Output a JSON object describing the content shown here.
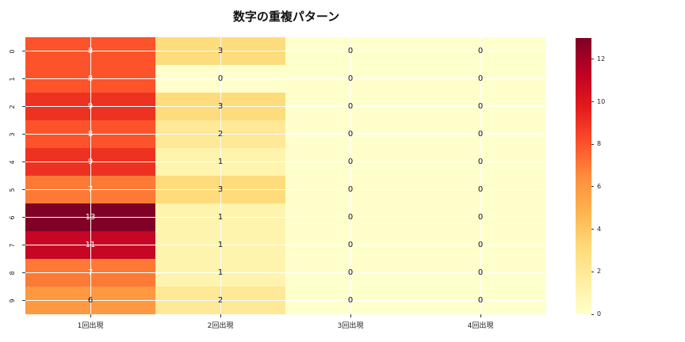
{
  "chart_data": {
    "type": "heatmap",
    "title": "数字の重複パターン",
    "columns": [
      "1回出現",
      "2回出現",
      "3回出現",
      "4回出現"
    ],
    "rows": [
      "0",
      "1",
      "2",
      "3",
      "4",
      "5",
      "6",
      "7",
      "8",
      "9"
    ],
    "values": [
      [
        8,
        3,
        0,
        0
      ],
      [
        8,
        0,
        0,
        0
      ],
      [
        9,
        3,
        0,
        0
      ],
      [
        8,
        2,
        0,
        0
      ],
      [
        9,
        1,
        0,
        0
      ],
      [
        7,
        3,
        0,
        0
      ],
      [
        13,
        1,
        0,
        0
      ],
      [
        11,
        1,
        0,
        0
      ],
      [
        7,
        1,
        0,
        0
      ],
      [
        6,
        2,
        0,
        0
      ]
    ],
    "vmin": 0,
    "vmax": 13,
    "annot_white_min": 7,
    "annot_color_dark": "#111111",
    "annot_color_light": "#ffffff",
    "value_colors": {
      "0": "#ffffcc",
      "1": "#fff4ad",
      "2": "#ffe896",
      "3": "#fedc7c",
      "6": "#fe9841",
      "7": "#fd7a36",
      "8": "#fc532b",
      "9": "#ee3222",
      "11": "#c60624",
      "13": "#800026"
    },
    "grid": true,
    "gridline_color": "#ffffff",
    "colorbar": {
      "ticks": [
        0,
        2,
        4,
        6,
        8,
        10,
        12
      ],
      "colormap_name": "YlOrRd",
      "colormap_stops": [
        "#ffffcc",
        "#ffeda0",
        "#fed976",
        "#feb24c",
        "#fd8d3c",
        "#fc4e2a",
        "#e31a1c",
        "#bd0026",
        "#800026"
      ]
    },
    "legend_position": "right"
  }
}
